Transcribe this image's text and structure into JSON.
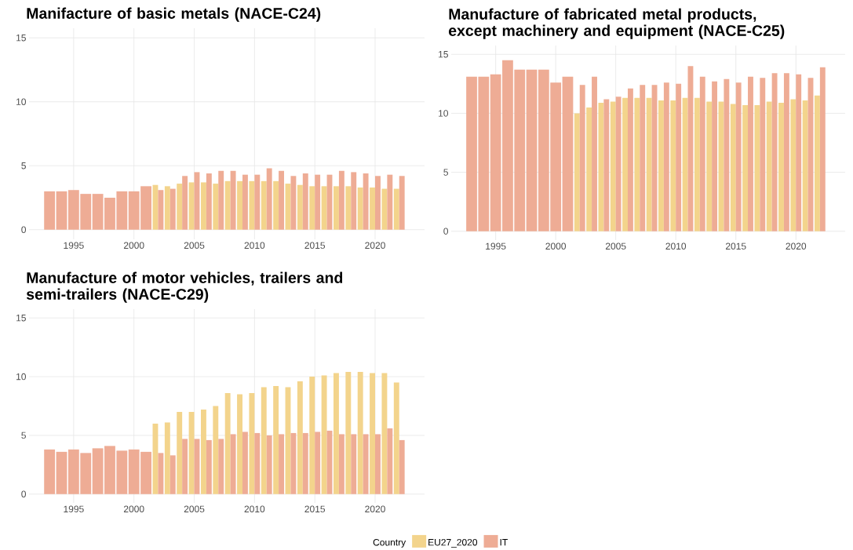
{
  "chart_data": [
    {
      "type": "bar",
      "title": "Manifacture of basic metals (NACE-C24)",
      "xlim": [
        1991.3,
        2024.1
      ],
      "xticks": [
        1995,
        2000,
        2005,
        2010,
        2015,
        2020
      ],
      "ylim": [
        -0.75,
        15.75
      ],
      "yticks": [
        0,
        5,
        10,
        15
      ],
      "grid": true,
      "series": [
        {
          "color": "#f3d48c",
          "x": [
            2002,
            2003,
            2004,
            2005,
            2006,
            2007,
            2008,
            2009,
            2010,
            2011,
            2012,
            2013,
            2014,
            2015,
            2016,
            2017,
            2018,
            2019,
            2020,
            2021,
            2022
          ],
          "values": [
            3.5,
            3.4,
            3.6,
            3.7,
            3.7,
            3.6,
            3.8,
            3.8,
            3.8,
            3.8,
            3.8,
            3.6,
            3.5,
            3.4,
            3.4,
            3.4,
            3.4,
            3.3,
            3.3,
            3.2,
            3.2
          ]
        },
        {
          "color": "#eeac95",
          "x": [
            1993,
            1994,
            1995,
            1996,
            1997,
            1998,
            1999,
            2000,
            2001,
            2002,
            2003,
            2004,
            2005,
            2006,
            2007,
            2008,
            2009,
            2010,
            2011,
            2012,
            2013,
            2014,
            2015,
            2016,
            2017,
            2018,
            2019,
            2020,
            2021,
            2022
          ],
          "values": [
            3.0,
            3.0,
            3.1,
            2.8,
            2.8,
            2.5,
            3.0,
            3.0,
            3.4,
            3.1,
            3.2,
            4.2,
            4.5,
            4.4,
            4.6,
            4.6,
            4.3,
            4.3,
            4.8,
            4.6,
            4.2,
            4.4,
            4.3,
            4.3,
            4.6,
            4.5,
            4.4,
            4.2,
            4.3,
            4.2
          ]
        }
      ]
    },
    {
      "type": "bar",
      "title": "Manufacture of fabricated metal products, except machinery and equipment (NACE-C25)",
      "xlim": [
        1991.3,
        2024.1
      ],
      "xticks": [
        1995,
        2000,
        2005,
        2010,
        2015,
        2020
      ],
      "ylim": [
        -0.75,
        15.75
      ],
      "yticks": [
        0,
        5,
        10,
        15
      ],
      "grid": true,
      "series": [
        {
          "color": "#f3d48c",
          "x": [
            2002,
            2003,
            2004,
            2005,
            2006,
            2007,
            2008,
            2009,
            2010,
            2011,
            2012,
            2013,
            2014,
            2015,
            2016,
            2017,
            2018,
            2019,
            2020,
            2021,
            2022
          ],
          "values": [
            10.0,
            10.5,
            10.9,
            11.0,
            11.3,
            11.3,
            11.3,
            11.1,
            11.1,
            11.3,
            11.3,
            11.0,
            11.0,
            10.8,
            10.7,
            10.7,
            11.0,
            10.9,
            11.2,
            11.1,
            11.5
          ]
        },
        {
          "color": "#eeac95",
          "x": [
            1993,
            1994,
            1995,
            1996,
            1997,
            1998,
            1999,
            2000,
            2001,
            2002,
            2003,
            2004,
            2005,
            2006,
            2007,
            2008,
            2009,
            2010,
            2011,
            2012,
            2013,
            2014,
            2015,
            2016,
            2017,
            2018,
            2019,
            2020,
            2021,
            2022
          ],
          "values": [
            13.1,
            13.1,
            13.3,
            14.5,
            13.7,
            13.7,
            13.7,
            12.6,
            13.1,
            12.4,
            13.1,
            11.2,
            11.4,
            12.1,
            12.4,
            12.4,
            12.6,
            12.5,
            14.0,
            13.1,
            12.7,
            12.9,
            12.6,
            13.1,
            13.0,
            13.4,
            13.4,
            13.3,
            13.0,
            13.9
          ]
        }
      ]
    },
    {
      "type": "bar",
      "title": "Manufacture of motor vehicles, trailers and semi-trailers (NACE-C29)",
      "xlim": [
        1991.3,
        2024.1
      ],
      "xticks": [
        1995,
        2000,
        2005,
        2010,
        2015,
        2020
      ],
      "ylim": [
        -0.75,
        15.75
      ],
      "yticks": [
        0,
        5,
        10,
        15
      ],
      "grid": true,
      "legend": "bottom",
      "legend_title": "Country",
      "series": [
        {
          "name": "EU27_2020",
          "color": "#f3d48c",
          "x": [
            2002,
            2003,
            2004,
            2005,
            2006,
            2007,
            2008,
            2009,
            2010,
            2011,
            2012,
            2013,
            2014,
            2015,
            2016,
            2017,
            2018,
            2019,
            2020,
            2021,
            2022
          ],
          "values": [
            6.0,
            6.1,
            7.0,
            7.0,
            7.2,
            7.5,
            8.6,
            8.5,
            8.6,
            9.1,
            9.2,
            9.1,
            9.6,
            10.0,
            10.1,
            10.3,
            10.4,
            10.4,
            10.3,
            10.3,
            9.5
          ]
        },
        {
          "name": "IT",
          "color": "#eeac95",
          "x": [
            1993,
            1994,
            1995,
            1996,
            1997,
            1998,
            1999,
            2000,
            2001,
            2002,
            2003,
            2004,
            2005,
            2006,
            2007,
            2008,
            2009,
            2010,
            2011,
            2012,
            2013,
            2014,
            2015,
            2016,
            2017,
            2018,
            2019,
            2020,
            2021,
            2022
          ],
          "values": [
            3.8,
            3.6,
            3.8,
            3.5,
            3.9,
            4.1,
            3.7,
            3.8,
            3.6,
            3.5,
            3.3,
            4.7,
            4.7,
            4.6,
            4.7,
            5.1,
            5.3,
            5.2,
            5.0,
            5.1,
            5.2,
            5.2,
            5.3,
            5.4,
            5.1,
            5.1,
            5.1,
            5.1,
            5.6,
            4.6
          ]
        }
      ]
    }
  ]
}
